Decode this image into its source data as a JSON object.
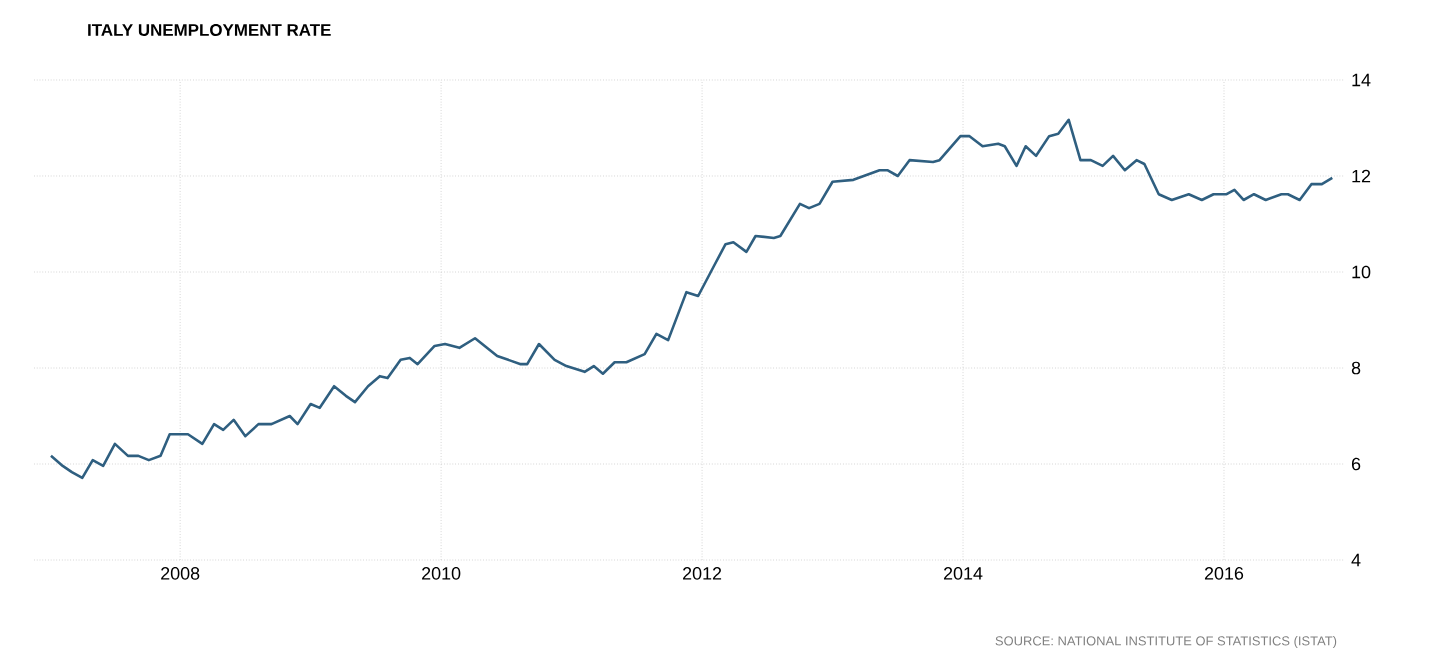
{
  "chart_data": {
    "type": "line",
    "title": "ITALY UNEMPLOYMENT RATE",
    "annotations": [
      "SOURCE: NATIONAL INSTITUTE OF STATISTICS (ISTAT)"
    ],
    "x": [
      2007.01,
      2007.1,
      2007.17,
      2007.25,
      2007.33,
      2007.41,
      2007.5,
      2007.6,
      2007.68,
      2007.76,
      2007.85,
      2007.92,
      2008.06,
      2008.17,
      2008.26,
      2008.33,
      2008.41,
      2008.5,
      2008.6,
      2008.7,
      2008.84,
      2008.9,
      2009.0,
      2009.07,
      2009.18,
      2009.27,
      2009.34,
      2009.44,
      2009.53,
      2009.59,
      2009.69,
      2009.76,
      2009.82,
      2009.95,
      2010.03,
      2010.14,
      2010.26,
      2010.43,
      2010.61,
      2010.66,
      2010.75,
      2010.87,
      2010.96,
      2011.1,
      2011.17,
      2011.24,
      2011.33,
      2011.42,
      2011.56,
      2011.65,
      2011.74,
      2011.88,
      2011.97,
      2012.09,
      2012.18,
      2012.24,
      2012.34,
      2012.41,
      2012.55,
      2012.6,
      2012.75,
      2012.82,
      2012.9,
      2013.0,
      2013.16,
      2013.36,
      2013.42,
      2013.5,
      2013.59,
      2013.77,
      2013.82,
      2013.98,
      2014.05,
      2014.15,
      2014.27,
      2014.32,
      2014.41,
      2014.48,
      2014.56,
      2014.66,
      2014.73,
      2014.81,
      2014.9,
      2014.98,
      2015.07,
      2015.15,
      2015.24,
      2015.33,
      2015.39,
      2015.5,
      2015.6,
      2015.73,
      2015.83,
      2015.92,
      2016.02,
      2016.08,
      2016.15,
      2016.23,
      2016.32,
      2016.44,
      2016.49,
      2016.58,
      2016.67,
      2016.75,
      2016.83
    ],
    "series": [
      {
        "color": "#2f5f80",
        "values": [
          6.17,
          5.96,
          5.83,
          5.71,
          6.08,
          5.96,
          6.42,
          6.17,
          6.17,
          6.08,
          6.17,
          6.62,
          6.62,
          6.42,
          6.83,
          6.71,
          6.92,
          6.58,
          6.83,
          6.83,
          7.0,
          6.83,
          7.25,
          7.17,
          7.62,
          7.42,
          7.29,
          7.62,
          7.83,
          7.79,
          8.17,
          8.21,
          8.08,
          8.46,
          8.5,
          8.42,
          8.62,
          8.25,
          8.08,
          8.08,
          8.5,
          8.17,
          8.04,
          7.92,
          8.04,
          7.88,
          8.12,
          8.12,
          8.29,
          8.71,
          8.58,
          9.58,
          9.5,
          10.12,
          10.58,
          10.62,
          10.42,
          10.75,
          10.71,
          10.75,
          11.42,
          11.33,
          11.42,
          11.88,
          11.92,
          12.12,
          12.12,
          12.0,
          12.33,
          12.29,
          12.33,
          12.83,
          12.83,
          12.62,
          12.67,
          12.62,
          12.21,
          12.62,
          12.42,
          12.83,
          12.88,
          13.17,
          12.33,
          12.33,
          12.21,
          12.42,
          12.12,
          12.33,
          12.25,
          11.62,
          11.5,
          11.62,
          11.5,
          11.62,
          11.62,
          11.71,
          11.5,
          11.62,
          11.5,
          11.62,
          11.62,
          11.5,
          11.83,
          11.83,
          11.96
        ]
      }
    ],
    "xlim": [
      2006.88,
      2016.92
    ],
    "ylim": [
      4,
      14
    ],
    "xticks": [
      2008,
      2010,
      2012,
      2014,
      2016
    ],
    "yticks": [
      4,
      6,
      8,
      10,
      12,
      14
    ],
    "grid": true,
    "marker": "none",
    "line_style": "solid"
  }
}
